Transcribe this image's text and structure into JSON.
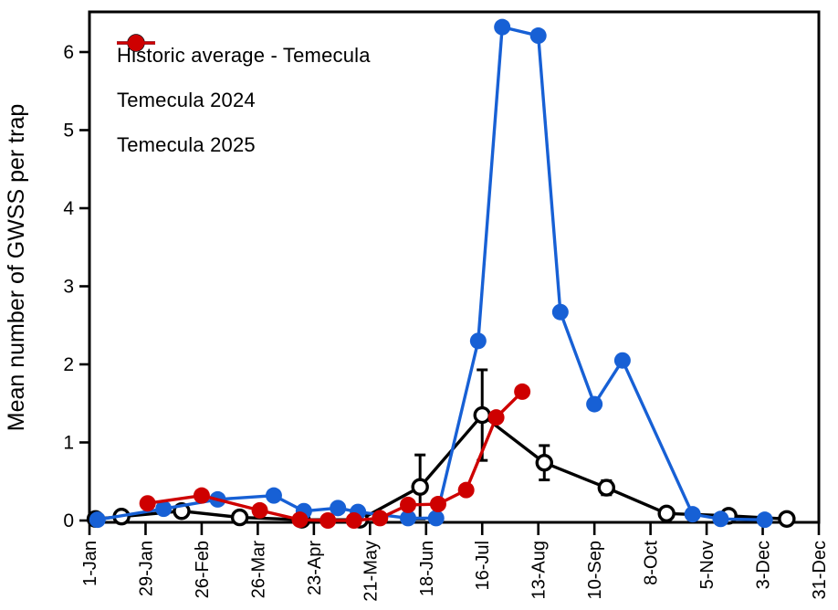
{
  "chart_data": {
    "type": "line",
    "title": "",
    "xlabel": "",
    "ylabel": "Mean number of GWSS per trap",
    "ylim": [
      0,
      6.5
    ],
    "yticks": [
      0,
      1,
      2,
      3,
      4,
      5,
      6
    ],
    "x_unit": "day_of_year",
    "xlim": [
      1,
      365
    ],
    "grid": false,
    "legend_position": "top-left-inside",
    "xticks": [
      {
        "day": 1,
        "label": "1-Jan"
      },
      {
        "day": 29,
        "label": "29-Jan"
      },
      {
        "day": 57,
        "label": "26-Feb"
      },
      {
        "day": 85,
        "label": "26-Mar"
      },
      {
        "day": 113,
        "label": "23-Apr"
      },
      {
        "day": 141,
        "label": "21-May"
      },
      {
        "day": 169,
        "label": "18-Jun"
      },
      {
        "day": 197,
        "label": "16-Jul"
      },
      {
        "day": 225,
        "label": "13-Aug"
      },
      {
        "day": 253,
        "label": "10-Sep"
      },
      {
        "day": 281,
        "label": "8-Oct"
      },
      {
        "day": 309,
        "label": "5-Nov"
      },
      {
        "day": 337,
        "label": "3-Dec"
      },
      {
        "day": 365,
        "label": "31-Dec"
      }
    ],
    "series": [
      {
        "name": "Historic average - Temecula",
        "color": "#000000",
        "marker": "open-circle",
        "points": [
          {
            "day": 4,
            "value": 0.02
          },
          {
            "day": 17,
            "value": 0.05
          },
          {
            "day": 47,
            "value": 0.12
          },
          {
            "day": 76,
            "value": 0.04
          },
          {
            "day": 107,
            "value": 0.01
          },
          {
            "day": 136,
            "value": 0.01
          },
          {
            "day": 166,
            "value": 0.43,
            "err": 0.41
          },
          {
            "day": 197,
            "value": 1.35,
            "err": 0.58
          },
          {
            "day": 228,
            "value": 0.74,
            "err": 0.22
          },
          {
            "day": 259,
            "value": 0.42,
            "err": 0.09
          },
          {
            "day": 289,
            "value": 0.09
          },
          {
            "day": 320,
            "value": 0.06
          },
          {
            "day": 349,
            "value": 0.02
          }
        ]
      },
      {
        "name": "Temecula 2024",
        "color": "#1760D5",
        "marker": "filled-circle",
        "points": [
          {
            "day": 5,
            "value": 0.01
          },
          {
            "day": 38,
            "value": 0.15
          },
          {
            "day": 65,
            "value": 0.27
          },
          {
            "day": 93,
            "value": 0.32
          },
          {
            "day": 108,
            "value": 0.12
          },
          {
            "day": 125,
            "value": 0.16
          },
          {
            "day": 135,
            "value": 0.11
          },
          {
            "day": 160,
            "value": 0.03
          },
          {
            "day": 174,
            "value": 0.03
          },
          {
            "day": 195,
            "value": 2.3
          },
          {
            "day": 207,
            "value": 6.32
          },
          {
            "day": 225,
            "value": 6.21
          },
          {
            "day": 236,
            "value": 2.67
          },
          {
            "day": 253,
            "value": 1.49
          },
          {
            "day": 267,
            "value": 2.05
          },
          {
            "day": 302,
            "value": 0.08
          },
          {
            "day": 316,
            "value": 0.02
          },
          {
            "day": 338,
            "value": 0.01
          }
        ]
      },
      {
        "name": "Temecula 2025",
        "color": "#CE0000",
        "marker": "filled-circle",
        "points": [
          {
            "day": 30,
            "value": 0.22
          },
          {
            "day": 57,
            "value": 0.32
          },
          {
            "day": 86,
            "value": 0.13
          },
          {
            "day": 106,
            "value": 0.01
          },
          {
            "day": 120,
            "value": 0.0
          },
          {
            "day": 133,
            "value": 0.0
          },
          {
            "day": 146,
            "value": 0.03
          },
          {
            "day": 160,
            "value": 0.2
          },
          {
            "day": 175,
            "value": 0.21
          },
          {
            "day": 189,
            "value": 0.39
          },
          {
            "day": 204,
            "value": 1.32
          },
          {
            "day": 217,
            "value": 1.65
          }
        ]
      }
    ]
  }
}
